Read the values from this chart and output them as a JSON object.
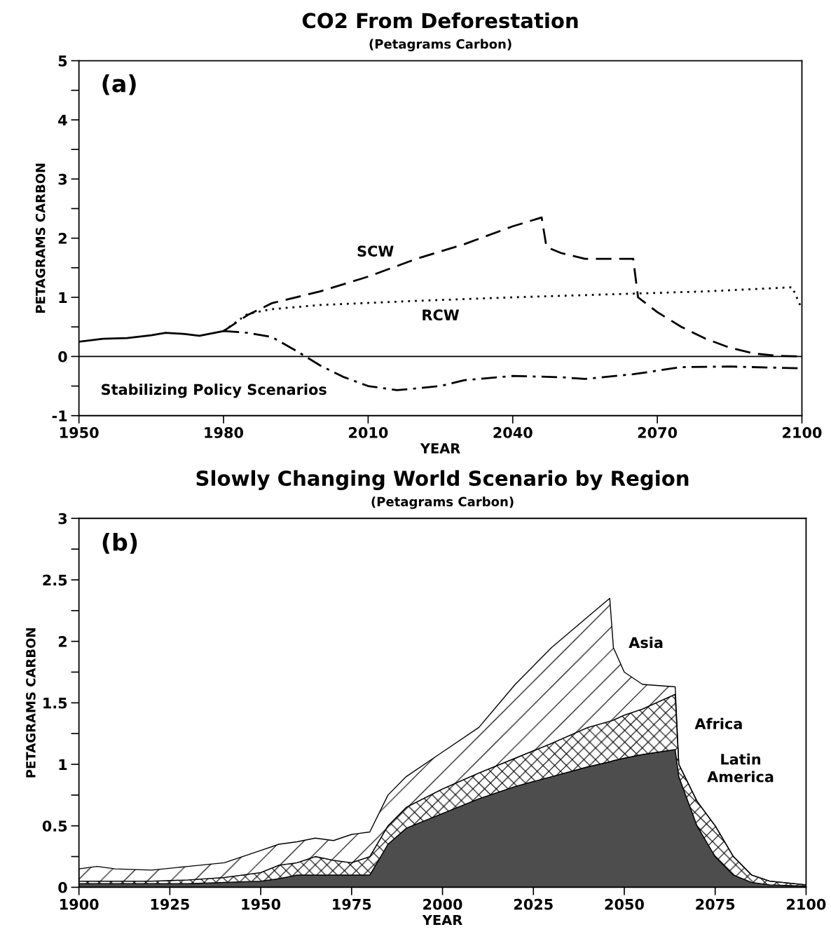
{
  "chart_data": [
    {
      "type": "line",
      "title": "CO2 From Deforestation",
      "subtitle": "(Petagrams Carbon)",
      "xlabel": "YEAR",
      "ylabel": "PETAGRAMS CARBON",
      "xlim": [
        1950,
        2100
      ],
      "xticks": [
        1950,
        1980,
        2010,
        2040,
        2070,
        2100
      ],
      "ylim": [
        -1,
        5
      ],
      "yticks": [
        -1,
        {
          "value": -0.5,
          "label": null
        },
        0,
        {
          "value": 0.5,
          "label": null
        },
        1,
        {
          "value": 1.5,
          "label": null
        },
        2,
        {
          "value": 2.5,
          "label": null
        },
        3,
        {
          "value": 3.5,
          "label": null
        },
        4,
        {
          "value": 4.5,
          "label": null
        },
        5
      ],
      "grid": false,
      "ref_lines": [
        {
          "axis": "y",
          "value": 0,
          "color": "#000000",
          "line_style": "solid"
        }
      ],
      "annotations": [
        "(a)",
        "SCW",
        "RCW",
        "Stabilizing Policy Scenarios"
      ],
      "series": [
        {
          "color": "#000000",
          "line_style": "solid",
          "x": [
            1950,
            1955,
            1960,
            1965,
            1968,
            1972,
            1975,
            1980
          ],
          "values": [
            0.25,
            0.3,
            0.31,
            0.36,
            0.4,
            0.38,
            0.35,
            0.43
          ]
        },
        {
          "color": "#000000",
          "line_style": "dashed",
          "x": [
            1980,
            1985,
            1990,
            2000,
            2010,
            2020,
            2030,
            2040,
            2046,
            2047,
            2050,
            2055,
            2065,
            2066,
            2070,
            2075,
            2080,
            2085,
            2090,
            2095,
            2100
          ],
          "values": [
            0.43,
            0.7,
            0.9,
            1.1,
            1.35,
            1.65,
            1.9,
            2.2,
            2.35,
            1.85,
            1.75,
            1.65,
            1.65,
            1.0,
            0.75,
            0.5,
            0.3,
            0.15,
            0.05,
            0.01,
            0.0
          ]
        },
        {
          "color": "#000000",
          "line_style": "dotted",
          "x": [
            1980,
            1985,
            1990,
            2000,
            2020,
            2040,
            2060,
            2080,
            2098,
            2100
          ],
          "values": [
            0.43,
            0.72,
            0.8,
            0.87,
            0.94,
            1.0,
            1.05,
            1.1,
            1.17,
            0.8
          ]
        },
        {
          "color": "#000000",
          "line_style": "dashdot",
          "x": [
            1980,
            1985,
            1990,
            1995,
            2000,
            2005,
            2010,
            2016,
            2025,
            2030,
            2040,
            2050,
            2055,
            2065,
            2075,
            2085,
            2100
          ],
          "values": [
            0.43,
            0.4,
            0.33,
            0.1,
            -0.15,
            -0.35,
            -0.5,
            -0.57,
            -0.5,
            -0.4,
            -0.33,
            -0.35,
            -0.38,
            -0.3,
            -0.18,
            -0.17,
            -0.2
          ]
        }
      ]
    },
    {
      "type": "area",
      "stacked": true,
      "title": "Slowly Changing World Scenario by Region",
      "subtitle": "(Petagrams Carbon)",
      "xlabel": "YEAR",
      "ylabel": "PETAGRAMS CARBON",
      "xlim": [
        1900,
        2100
      ],
      "xticks": [
        1900,
        1925,
        1950,
        1975,
        2000,
        2025,
        2050,
        2075,
        2100
      ],
      "ylim": [
        0,
        3
      ],
      "yticks": [
        0,
        {
          "value": 0.25,
          "label": null
        },
        0.5,
        {
          "value": 0.75,
          "label": null
        },
        1,
        {
          "value": 1.25,
          "label": null
        },
        1.5,
        {
          "value": 1.75,
          "label": null
        },
        2,
        {
          "value": 2.25,
          "label": null
        },
        2.5,
        {
          "value": 2.75,
          "label": null
        },
        3
      ],
      "grid": false,
      "annotations": [
        "(b)",
        "Asia",
        "Africa",
        "Latin\nAmerica"
      ],
      "x": [
        1900,
        1905,
        1910,
        1920,
        1930,
        1940,
        1950,
        1955,
        1960,
        1965,
        1970,
        1975,
        1980,
        1985,
        1990,
        2000,
        2010,
        2020,
        2030,
        2040,
        2046,
        2047,
        2050,
        2055,
        2064,
        2065,
        2070,
        2075,
        2080,
        2085,
        2090,
        2100
      ],
      "series": [
        {
          "color": "#4d4d4d",
          "values": [
            0.03,
            0.03,
            0.03,
            0.03,
            0.03,
            0.04,
            0.05,
            0.07,
            0.1,
            0.1,
            0.1,
            0.1,
            0.1,
            0.35,
            0.48,
            0.6,
            0.72,
            0.82,
            0.9,
            0.98,
            1.02,
            1.03,
            1.05,
            1.08,
            1.12,
            0.9,
            0.5,
            0.25,
            0.1,
            0.04,
            0.02,
            0.01
          ]
        },
        {
          "color": "#000000",
          "values": [
            0.02,
            0.02,
            0.02,
            0.02,
            0.03,
            0.04,
            0.07,
            0.11,
            0.1,
            0.15,
            0.12,
            0.1,
            0.15,
            0.15,
            0.17,
            0.2,
            0.21,
            0.23,
            0.27,
            0.32,
            0.33,
            0.33,
            0.35,
            0.37,
            0.45,
            0.1,
            0.2,
            0.25,
            0.15,
            0.06,
            0.03,
            0.01
          ]
        },
        {
          "color": "#000000",
          "values": [
            0.1,
            0.12,
            0.1,
            0.09,
            0.11,
            0.12,
            0.18,
            0.17,
            0.17,
            0.15,
            0.16,
            0.23,
            0.2,
            0.25,
            0.25,
            0.3,
            0.37,
            0.6,
            0.78,
            0.9,
            1.0,
            0.59,
            0.35,
            0.2,
            0.06,
            0,
            0,
            0,
            0,
            0,
            0,
            0
          ]
        }
      ]
    }
  ]
}
